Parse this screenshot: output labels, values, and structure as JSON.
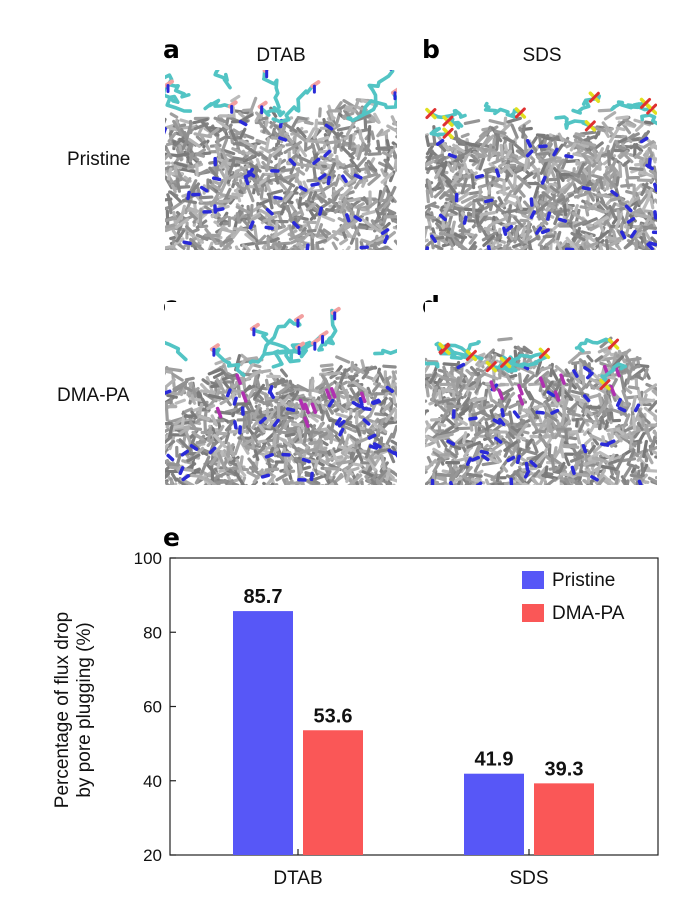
{
  "panels": {
    "a": {
      "letter": "a",
      "column_title": "DTAB"
    },
    "b": {
      "letter": "b",
      "column_title": "SDS"
    },
    "c": {
      "letter": "c"
    },
    "d": {
      "letter": "d"
    },
    "e": {
      "letter": "e"
    }
  },
  "rows": {
    "pristine_label": "Pristine",
    "dmapa_label": "DMA-PA"
  },
  "colors": {
    "membrane": "#8c8c8c",
    "surfactant": "#52c4c4",
    "nitrogen": "#2a2ad8",
    "oxygen_red": "#f2a0a0",
    "sulfur": "#e0e020",
    "magenta": "#b030b0",
    "pristine_bar": "#5757f7",
    "dmapa_bar": "#fa5757"
  },
  "chart_data": {
    "type": "bar",
    "categories": [
      "DTAB",
      "SDS"
    ],
    "series": [
      {
        "name": "Pristine",
        "values": [
          85.7,
          41.9
        ],
        "labels": [
          "85.7",
          "41.9"
        ]
      },
      {
        "name": "DMA-PA",
        "values": [
          53.6,
          39.3
        ],
        "labels": [
          "53.6",
          "39.3"
        ]
      }
    ],
    "ylabel_line1": "Percentage of flux drop",
    "ylabel_line2": "by pore plugging (%)",
    "ylim": [
      20,
      100
    ],
    "yticks": [
      20,
      40,
      60,
      80,
      100
    ],
    "legend": "top-right",
    "grid": false
  }
}
